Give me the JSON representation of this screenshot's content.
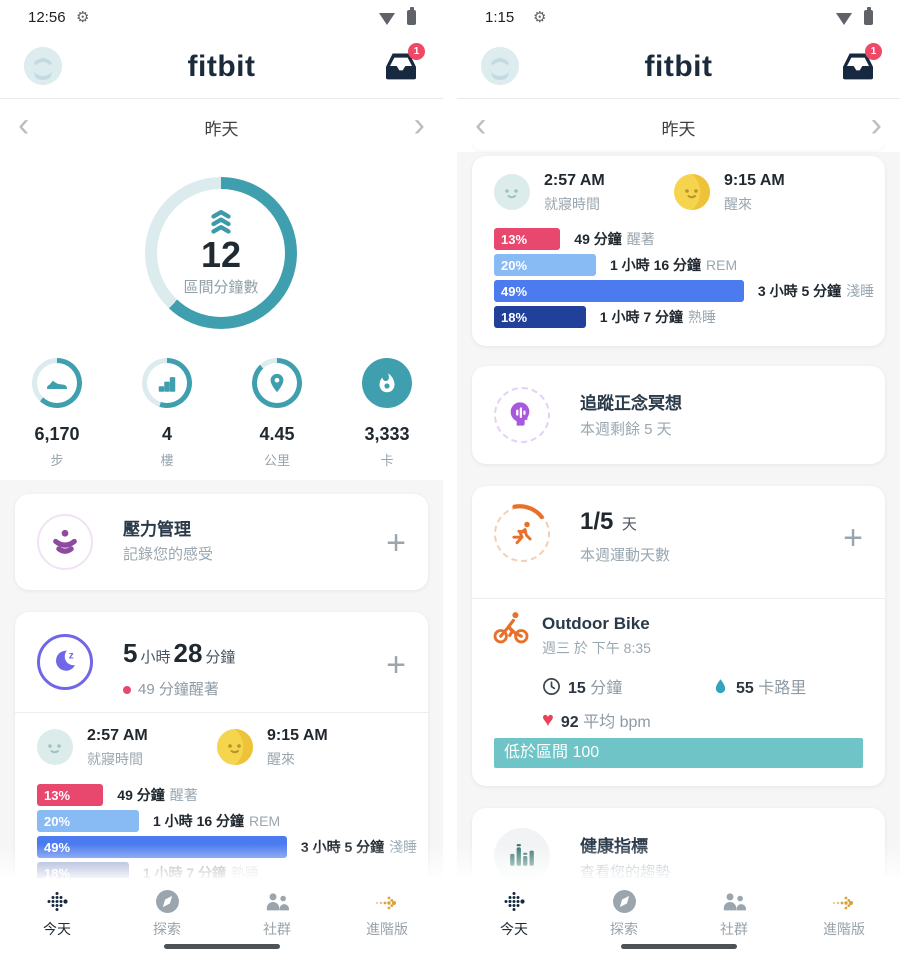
{
  "colors": {
    "teal": "#3f9fae",
    "teal_track": "#dcebee",
    "indigo": "#6f66e8",
    "indigo_track": "#e6e4fa",
    "stage_wake": "#e8486e",
    "stage_rem": "#88baf4",
    "stage_light": "#4b7bee",
    "stage_deep": "#20409a",
    "badge_red": "#ef4968",
    "zone_bar_teal": "#6ec4c6",
    "stress_purple": "#8e4a9e",
    "mind_purple": "#a957de",
    "orange": "#e8702a",
    "heart_red": "#e8435a",
    "drop_teal": "#35a3bd",
    "health_teal": "#2f6f68",
    "navy": "#16293e",
    "gold": "#d9a43a"
  },
  "left": {
    "status_time": "12:56",
    "logo": "fitbit",
    "inbox_badge": "1",
    "date_label": "昨天",
    "zone": {
      "value": "12",
      "label": "區間分鐘數",
      "progress": 62
    },
    "stats": [
      {
        "value": "6,170",
        "label": "步",
        "progress": 62
      },
      {
        "value": "4",
        "label": "樓",
        "progress": 55
      },
      {
        "value": "4.45",
        "label": "公里",
        "progress": 88
      },
      {
        "value": "3,333",
        "label": "卡",
        "progress": 100
      }
    ],
    "stress_card": {
      "title": "壓力管理",
      "subtitle": "記錄您的感受",
      "add_label": "+"
    },
    "sleep_card": {
      "hours": "5",
      "hours_unit": "小時",
      "minutes": "28",
      "minutes_unit": "分鐘",
      "awake_note": "49 分鐘醒著",
      "add_label": "+"
    }
  },
  "right": {
    "status_time": "1:15",
    "logo": "fitbit",
    "inbox_badge": "1",
    "date_label": "昨天",
    "mindfulness_card": {
      "title": "追蹤正念冥想",
      "subtitle": "本週剩餘 5 天"
    },
    "exercise_card": {
      "value": "1/5",
      "unit": "天",
      "subtitle": "本週運動天數",
      "add_label": "+"
    },
    "workout": {
      "name": "Outdoor Bike",
      "datetime": "週三 於 下午 8:35",
      "duration_value": "15",
      "duration_unit": "分鐘",
      "calories_value": "55",
      "calories_unit": "卡路里",
      "bpm_value": "92",
      "bpm_unit": "平均 bpm",
      "zone_note": "低於區間 100"
    },
    "health_card": {
      "title": "健康指標",
      "subtitle": "查看您的趨勢"
    }
  },
  "sleep_detail": {
    "bed_time": "2:57 AM",
    "bed_label": "就寢時間",
    "wake_time": "9:15 AM",
    "wake_label": "醒來",
    "stages": [
      {
        "pct": 13,
        "pct_label": "13%",
        "duration": "49 分鐘",
        "stage": "醒著",
        "color_key": "stage_wake"
      },
      {
        "pct": 20,
        "pct_label": "20%",
        "duration": "1 小時 16 分鐘",
        "stage": "REM",
        "color_key": "stage_rem"
      },
      {
        "pct": 49,
        "pct_label": "49%",
        "duration": "3 小時 5 分鐘",
        "stage": "淺睡",
        "color_key": "stage_light"
      },
      {
        "pct": 18,
        "pct_label": "18%",
        "duration": "1 小時 7 分鐘",
        "stage": "熟睡",
        "color_key": "stage_deep"
      }
    ]
  },
  "nav": {
    "items": [
      {
        "label": "今天"
      },
      {
        "label": "探索"
      },
      {
        "label": "社群"
      },
      {
        "label": "進階版"
      }
    ]
  }
}
